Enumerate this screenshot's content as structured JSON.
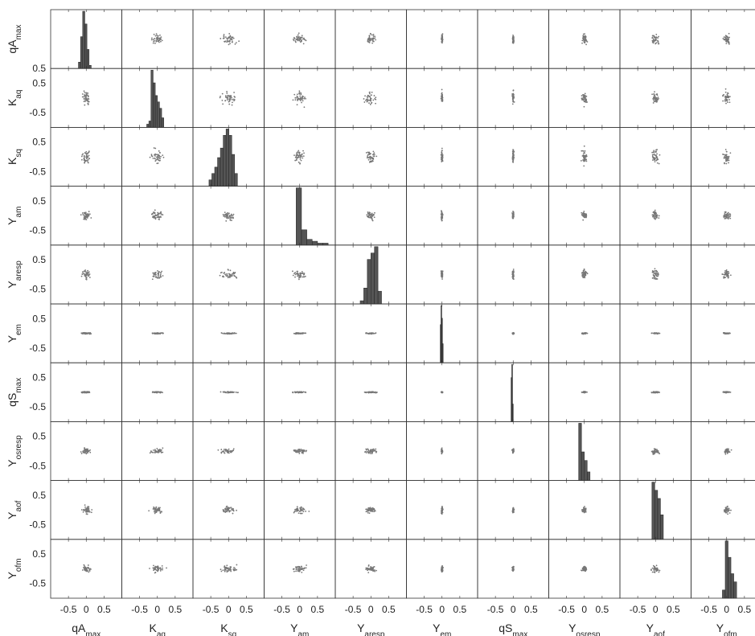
{
  "chart_data": {
    "type": "scatter-matrix",
    "variables": [
      {
        "main": "qA",
        "sub": "max"
      },
      {
        "main": "K",
        "sub": "aq"
      },
      {
        "main": "K",
        "sub": "sq"
      },
      {
        "main": "Y",
        "sub": "am"
      },
      {
        "main": "Y",
        "sub": "aresp"
      },
      {
        "main": "Y",
        "sub": "em"
      },
      {
        "main": "qS",
        "sub": "max"
      },
      {
        "main": "Y",
        "sub": "osresp"
      },
      {
        "main": "Y",
        "sub": "aof"
      },
      {
        "main": "Y",
        "sub": "ofm"
      }
    ],
    "x_tick_labels": [
      "-0.5",
      "0",
      "0.5"
    ],
    "y_tick_labels": [
      "0.5",
      "-0.5"
    ],
    "first_row_y_tick_label": "0.5",
    "axis_range": [
      -1,
      1
    ],
    "diagonal": "histogram",
    "off_diagonal": "scatter",
    "point_color": "#777777",
    "bar_color": "#555555",
    "histograms": [
      {
        "bins": [
          -0.22,
          -0.16,
          -0.1,
          -0.04,
          0.02,
          0.08
        ],
        "counts": [
          2,
          10,
          18,
          14,
          6,
          1
        ]
      },
      {
        "bins": [
          -0.3,
          -0.24,
          -0.18,
          -0.12,
          -0.06,
          0.0,
          0.06,
          0.12
        ],
        "counts": [
          1,
          2,
          18,
          14,
          10,
          8,
          6,
          3
        ]
      },
      {
        "bins": [
          -0.55,
          -0.47,
          -0.39,
          -0.31,
          -0.23,
          -0.15,
          -0.07,
          0.01,
          0.09,
          0.17
        ],
        "counts": [
          2,
          4,
          6,
          9,
          12,
          16,
          18,
          16,
          10,
          4
        ]
      },
      {
        "bins": [
          -0.1,
          0.05,
          0.2,
          0.35,
          0.5,
          0.65
        ],
        "counts": [
          30,
          8,
          3,
          2,
          1,
          1
        ]
      },
      {
        "bins": [
          -0.3,
          -0.2,
          -0.1,
          0.0,
          0.1,
          0.2
        ],
        "counts": [
          1,
          5,
          14,
          16,
          18,
          4
        ]
      },
      {
        "bins": [
          -0.05,
          -0.03,
          -0.01,
          0.01
        ],
        "counts": [
          12,
          18,
          14,
          6
        ]
      },
      {
        "bins": [
          -0.06,
          -0.04,
          -0.02
        ],
        "counts": [
          20,
          26,
          8
        ]
      },
      {
        "bins": [
          -0.16,
          -0.08,
          0.0,
          0.08
        ],
        "counts": [
          20,
          10,
          7,
          3
        ]
      },
      {
        "bins": [
          -0.1,
          -0.02,
          0.06,
          0.14
        ],
        "counts": [
          14,
          12,
          10,
          6
        ]
      },
      {
        "bins": [
          -0.12,
          -0.04,
          0.04,
          0.12,
          0.2
        ],
        "counts": [
          2,
          14,
          10,
          6,
          4
        ]
      }
    ]
  }
}
